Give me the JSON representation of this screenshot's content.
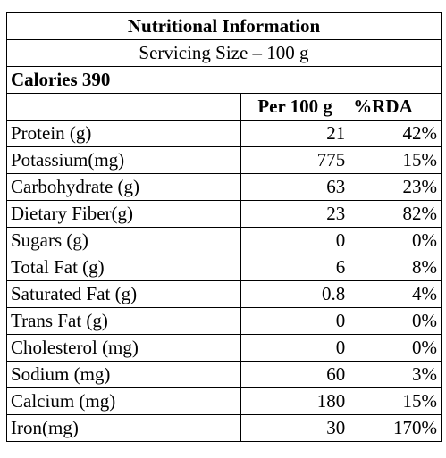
{
  "title": "Nutritional Information",
  "serving": "Servicing Size – 100 g",
  "calories": "Calories 390",
  "header": {
    "name": "",
    "per": "Per 100 g",
    "rda": "%RDA"
  },
  "rows": [
    {
      "name": "Protein (g)",
      "per": "21",
      "rda": "42%"
    },
    {
      "name": "Potassium(mg)",
      "per": "775",
      "rda": "15%"
    },
    {
      "name": "Carbohydrate (g)",
      "per": "63",
      "rda": "23%"
    },
    {
      "name": "Dietary Fiber(g)",
      "per": "23",
      "rda": "82%"
    },
    {
      "name": "Sugars (g)",
      "per": "0",
      "rda": "0%"
    },
    {
      "name": "Total Fat (g)",
      "per": "6",
      "rda": "8%"
    },
    {
      "name": "Saturated Fat (g)",
      "per": "0.8",
      "rda": "4%"
    },
    {
      "name": "Trans Fat (g)",
      "per": "0",
      "rda": "0%"
    },
    {
      "name": "Cholesterol (mg)",
      "per": "0",
      "rda": "0%"
    },
    {
      "name": "Sodium (mg)",
      "per": "60",
      "rda": "3%"
    },
    {
      "name": "Calcium (mg)",
      "per": "180",
      "rda": "15%"
    },
    {
      "name": "Iron(mg)",
      "per": "30",
      "rda": "170%"
    }
  ]
}
